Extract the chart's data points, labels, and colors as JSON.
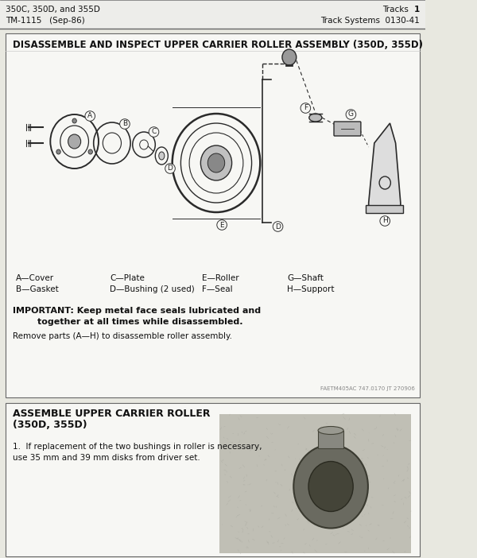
{
  "header_left_line1": "350C, 350D, and 355D",
  "header_left_line2": "TM-1115   (Sep-86)",
  "header_right_line1_a": "Tracks",
  "header_right_line1_b": "1",
  "header_right_line2": "Track Systems  0130-41",
  "section1_title": "DISASSEMBLE AND INSPECT UPPER CARRIER ROLLER ASSEMBLY (350D, 355D)",
  "parts_legend_row1": [
    "A—Cover",
    "C—Plate",
    "E—Roller",
    "G—Shaft"
  ],
  "parts_legend_row2": [
    "B—Gasket",
    "D—Bushing (2 used)",
    "F—Seal",
    "H—Support"
  ],
  "important_line1": "IMPORTANT: Keep metal face seals lubricated and",
  "important_line2": "        together at all times while disassembled.",
  "remove_text": "Remove parts (A—H) to disassemble roller assembly.",
  "watermark": "FAETM405AC 747.0170 JT 270906",
  "section2_title_line1": "ASSEMBLE UPPER CARRIER ROLLER",
  "section2_title_line2": "(350D, 355D)",
  "step1_line1": "1.  If replacement of the two bushings in roller is necessary,",
  "step1_line2": "use 35 mm and 39 mm disks from driver set.",
  "bg_color": "#e8e8e0",
  "page_bg": "#f7f7f4",
  "border_color": "#666666",
  "text_color": "#111111",
  "header_border": "#999999",
  "diagram_color": "#2a2a2a",
  "label_bg": "#f7f7f4"
}
